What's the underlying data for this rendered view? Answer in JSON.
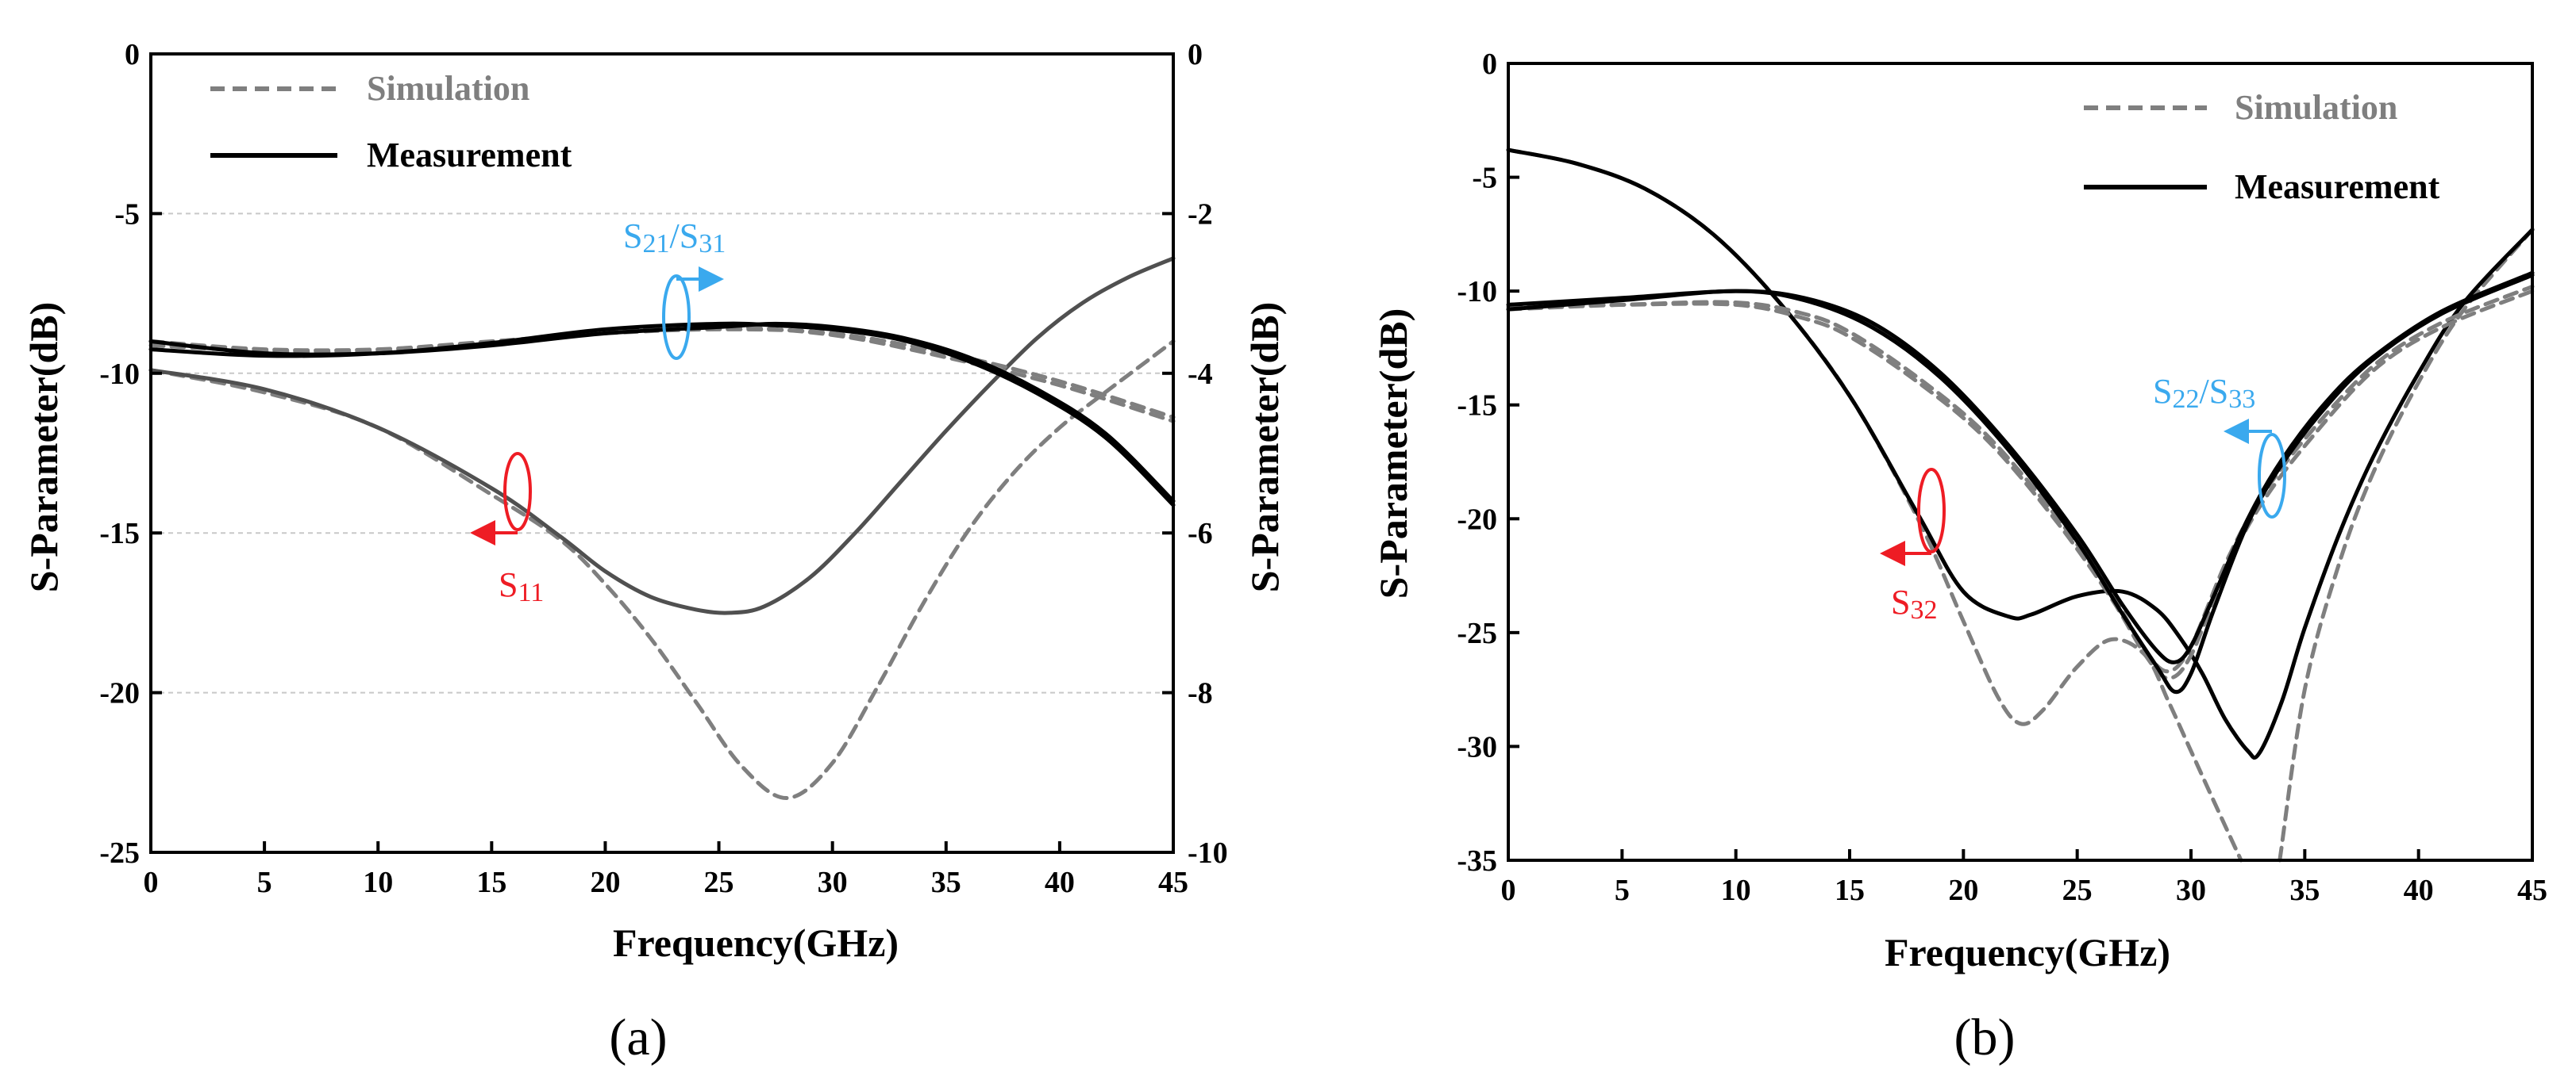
{
  "colors": {
    "simulation": "#7f7f7f",
    "measurement": "#000000",
    "s11_meas": "#505050",
    "red": "#ee1c24",
    "blue": "#3aa9ee",
    "grid": "#c8c8c8"
  },
  "chart_data": [
    {
      "panel": "(a)",
      "type": "line",
      "xlabel": "Frequency(GHz)",
      "ylabel": "S-Parameter(dB)",
      "ylabel_right": "S-Parameter(dB)",
      "xlim": [
        0,
        45
      ],
      "ylim": [
        -25,
        0
      ],
      "ylim_right": [
        -10,
        0
      ],
      "xticks": [
        "0",
        "5",
        "10",
        "15",
        "20",
        "25",
        "30",
        "35",
        "40",
        "45"
      ],
      "yticks": [
        "-25",
        "-20",
        "-15",
        "-10",
        "-5",
        "0"
      ],
      "yticks_right": [
        "-10",
        "-8",
        "-6",
        "-4",
        "-2",
        "0"
      ],
      "grid_y": true,
      "legend": {
        "position": "top-left",
        "entries": [
          "Simulation",
          "Measurement"
        ]
      },
      "annotations": [
        {
          "label": "S11",
          "axis": "left",
          "color": "red"
        },
        {
          "label": "S21/S31",
          "axis": "right",
          "color": "blue"
        }
      ],
      "series": [
        {
          "name": "S11 Simulation",
          "axis": "left",
          "style": "dashed",
          "x": [
            0,
            5,
            10,
            15,
            18,
            20,
            22,
            24,
            26,
            28,
            30,
            32,
            34,
            36,
            38,
            40,
            42,
            45
          ],
          "y": [
            -9.9,
            -10.6,
            -11.7,
            -13.8,
            -15.2,
            -16.6,
            -18.3,
            -20.3,
            -22.3,
            -23.3,
            -22.2,
            -19.8,
            -17.2,
            -14.9,
            -13.1,
            -11.7,
            -10.6,
            -9.0
          ]
        },
        {
          "name": "S11 Measurement",
          "axis": "left",
          "style": "solid",
          "x": [
            0,
            5,
            10,
            15,
            18,
            20,
            22,
            24,
            25.5,
            27,
            29,
            31,
            33,
            35,
            37,
            39,
            41,
            43,
            45
          ],
          "y": [
            -9.9,
            -10.5,
            -11.7,
            -13.6,
            -15.1,
            -16.2,
            -17.0,
            -17.4,
            -17.5,
            -17.3,
            -16.4,
            -15.0,
            -13.4,
            -11.8,
            -10.3,
            -8.9,
            -7.8,
            -7.0,
            -6.4
          ]
        },
        {
          "name": "S21 Simulation",
          "axis": "right",
          "style": "dashed",
          "x": [
            0,
            5,
            10,
            15,
            20,
            25,
            30,
            35,
            40,
            45
          ],
          "y": [
            -3.6,
            -3.7,
            -3.7,
            -3.6,
            -3.5,
            -3.45,
            -3.5,
            -3.75,
            -4.1,
            -4.55
          ]
        },
        {
          "name": "S31 Simulation",
          "axis": "right",
          "style": "dashed",
          "x": [
            0,
            5,
            10,
            15,
            20,
            25,
            30,
            35,
            40,
            45
          ],
          "y": [
            -3.65,
            -3.72,
            -3.72,
            -3.62,
            -3.48,
            -3.42,
            -3.52,
            -3.8,
            -4.15,
            -4.6
          ]
        },
        {
          "name": "S21 Measurement",
          "axis": "right",
          "style": "solid",
          "x": [
            0,
            5,
            10,
            15,
            20,
            25,
            27.5,
            30,
            33,
            36,
            39,
            42,
            45
          ],
          "y": [
            -3.6,
            -3.75,
            -3.75,
            -3.65,
            -3.5,
            -3.42,
            -3.38,
            -3.42,
            -3.55,
            -3.8,
            -4.2,
            -4.75,
            -5.6
          ]
        },
        {
          "name": "S31 Measurement",
          "axis": "right",
          "style": "solid",
          "x": [
            0,
            5,
            10,
            15,
            20,
            25,
            27.5,
            30,
            33,
            36,
            39,
            42,
            45
          ],
          "y": [
            -3.7,
            -3.78,
            -3.75,
            -3.62,
            -3.45,
            -3.38,
            -3.4,
            -3.45,
            -3.58,
            -3.85,
            -4.25,
            -4.8,
            -5.65
          ]
        }
      ]
    },
    {
      "panel": "(b)",
      "type": "line",
      "xlabel": "Frequency(GHz)",
      "ylabel": "S-Parameter(dB)",
      "xlim": [
        0,
        45
      ],
      "ylim": [
        -35,
        0
      ],
      "xticks": [
        "0",
        "5",
        "10",
        "15",
        "20",
        "25",
        "30",
        "35",
        "40",
        "45"
      ],
      "yticks": [
        "-35",
        "-30",
        "-25",
        "-20",
        "-15",
        "-10",
        "-5",
        "0"
      ],
      "grid_y": false,
      "legend": {
        "position": "top-right",
        "entries": [
          "Simulation",
          "Measurement"
        ]
      },
      "annotations": [
        {
          "label": "S32",
          "color": "red"
        },
        {
          "label": "S22/S33",
          "color": "blue"
        }
      ],
      "series": [
        {
          "name": "S32 Simulation",
          "style": "dashed",
          "x": [
            0,
            3,
            6,
            9,
            12,
            15,
            18,
            20,
            21.5,
            22.5,
            23.5,
            25,
            26.5,
            28,
            29,
            30,
            31,
            32.2
          ],
          "y": [
            -3.8,
            -4.4,
            -5.5,
            -7.5,
            -10.6,
            -14.6,
            -20.0,
            -24.5,
            -27.8,
            -29.0,
            -28.4,
            -26.5,
            -25.3,
            -26.0,
            -28.0,
            -30.2,
            -32.4,
            -35
          ]
        },
        {
          "name": "S32 Simulation (rise)",
          "style": "dashed",
          "x": [
            33.9,
            35,
            36.5,
            38,
            40,
            42,
            45
          ],
          "y": [
            -35,
            -27.5,
            -22.0,
            -18.0,
            -14.0,
            -10.8,
            -7.3
          ]
        },
        {
          "name": "S32 Measurement",
          "style": "solid",
          "x": [
            0,
            3,
            6,
            9,
            12,
            15,
            18,
            20,
            22,
            23,
            25,
            27,
            28.5,
            29.5,
            30.5,
            31.5,
            32.5,
            33,
            34,
            35,
            36.5,
            38,
            40,
            42,
            45
          ],
          "y": [
            -3.8,
            -4.4,
            -5.5,
            -7.5,
            -10.6,
            -14.6,
            -19.8,
            -23.2,
            -24.3,
            -24.2,
            -23.4,
            -23.2,
            -24.0,
            -25.2,
            -26.8,
            -28.8,
            -30.2,
            -30.3,
            -28.0,
            -24.8,
            -20.7,
            -17.3,
            -13.6,
            -10.5,
            -7.3
          ]
        },
        {
          "name": "S22 Simulation",
          "style": "dashed",
          "x": [
            0,
            5,
            10,
            13,
            15,
            18,
            21,
            24,
            26.5,
            28,
            29,
            30,
            31.5,
            33,
            35,
            38,
            41,
            45
          ],
          "y": [
            -10.7,
            -10.6,
            -10.6,
            -11.2,
            -12.0,
            -14.0,
            -16.5,
            -20.0,
            -23.5,
            -26.0,
            -27.0,
            -26.0,
            -22.3,
            -19.5,
            -16.8,
            -13.5,
            -11.6,
            -10.0
          ]
        },
        {
          "name": "S33 Simulation",
          "style": "dashed",
          "x": [
            0,
            5,
            10,
            13,
            15,
            18,
            21,
            24,
            26.5,
            28,
            29,
            30,
            31.5,
            33,
            35,
            38,
            41,
            45
          ],
          "y": [
            -10.8,
            -10.6,
            -10.5,
            -11.0,
            -11.8,
            -13.8,
            -16.3,
            -19.8,
            -23.3,
            -25.8,
            -26.7,
            -25.6,
            -22.0,
            -19.2,
            -16.5,
            -13.3,
            -11.4,
            -9.8
          ]
        },
        {
          "name": "S22 Measurement",
          "style": "solid",
          "x": [
            0,
            5,
            10,
            13,
            16,
            19,
            22,
            25,
            27,
            28.5,
            29.3,
            30,
            31,
            32.5,
            34,
            36,
            38,
            41,
            45
          ],
          "y": [
            -10.8,
            -10.4,
            -10.0,
            -10.4,
            -11.6,
            -13.8,
            -17.0,
            -21.0,
            -24.2,
            -26.5,
            -27.6,
            -26.8,
            -24.0,
            -20.2,
            -17.6,
            -15.0,
            -13.0,
            -11.0,
            -9.3
          ]
        },
        {
          "name": "S33 Measurement",
          "style": "solid",
          "x": [
            0,
            5,
            10,
            13,
            16,
            19,
            22,
            25,
            27,
            28.5,
            29.3,
            30,
            31,
            32.5,
            34,
            36,
            38,
            41,
            45
          ],
          "y": [
            -10.6,
            -10.3,
            -10.0,
            -10.3,
            -11.4,
            -13.6,
            -16.8,
            -20.7,
            -23.8,
            -25.8,
            -26.3,
            -25.6,
            -23.4,
            -20.0,
            -17.4,
            -14.8,
            -12.9,
            -10.9,
            -9.2
          ]
        }
      ]
    }
  ]
}
